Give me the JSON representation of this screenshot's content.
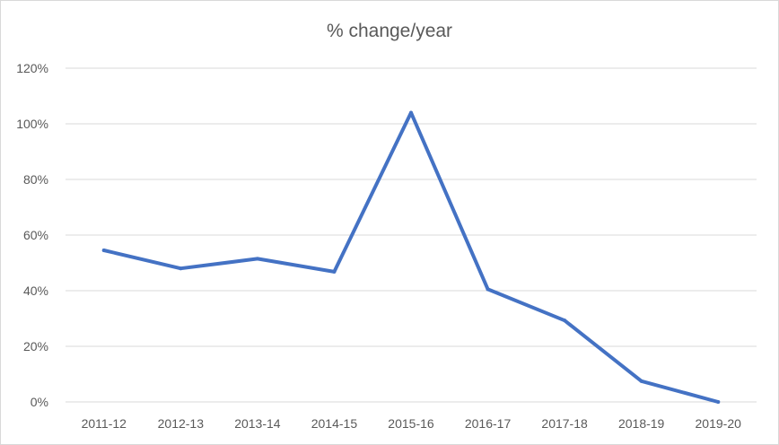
{
  "chart_data": {
    "type": "line",
    "title": "% change/year",
    "xlabel": "",
    "ylabel": "",
    "categories": [
      "2011-12",
      "2012-13",
      "2013-14",
      "2014-15",
      "2015-16",
      "2016-17",
      "2017-18",
      "2018-19",
      "2019-20"
    ],
    "series": [
      {
        "values": [
          0.545,
          0.48,
          0.515,
          0.468,
          1.04,
          0.405,
          0.293,
          0.075,
          0.0
        ]
      }
    ],
    "ylim": [
      0,
      1.2
    ],
    "y_ticks": [
      0,
      0.2,
      0.4,
      0.6,
      0.8,
      1.0,
      1.2
    ],
    "y_tick_labels": [
      "0%",
      "20%",
      "40%",
      "60%",
      "80%",
      "100%",
      "120%"
    ],
    "grid": "horizontal",
    "legend": "none",
    "colors": {
      "line": "#4472c4",
      "grid": "#d9d9d9",
      "text": "#595959"
    }
  }
}
